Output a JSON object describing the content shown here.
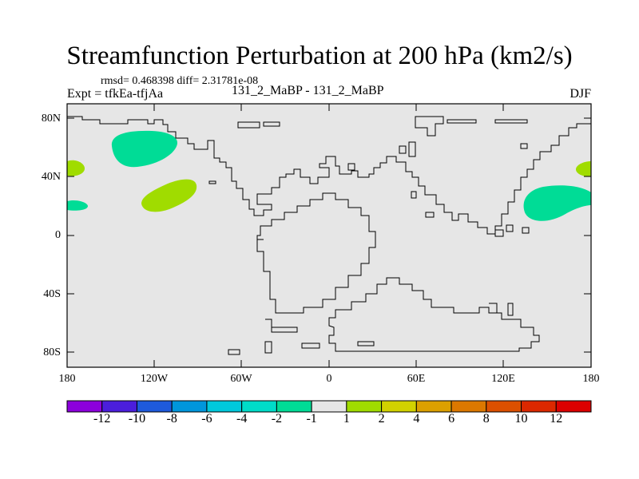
{
  "title": "Streamfunction Perturbation at 200 hPa (km2/s)",
  "stats": "rmsd= 0.468398 diff= 2.31781e-08",
  "expt": "Expt = tfkEa-tfjAa",
  "center_label": "131_2_MaBP - 131_2_MaBP",
  "season": "DJF",
  "colors": {
    "land_background": "#e6e6e6",
    "coast": "#000000",
    "pos_light": "#a0dc00",
    "neg_light": "#00dc96"
  },
  "map": {
    "y_ticks": [
      "80N",
      "40N",
      "0",
      "40S",
      "80S"
    ],
    "x_ticks": [
      "180",
      "120W",
      "60W",
      "0",
      "60E",
      "120E",
      "180"
    ]
  },
  "colorbar": {
    "colors": [
      "#8c00dc",
      "#4b1edc",
      "#1e5adc",
      "#0096dc",
      "#00c8dc",
      "#00dcc8",
      "#00dc96",
      "#e6e6e6",
      "#a0dc00",
      "#d2d200",
      "#dca000",
      "#dc7800",
      "#dc5000",
      "#dc2800",
      "#dc0000"
    ],
    "labels": [
      "-12",
      "-10",
      "-8",
      "-6",
      "-4",
      "-2",
      "-1",
      "1",
      "2",
      "4",
      "6",
      "8",
      "10",
      "12"
    ]
  }
}
